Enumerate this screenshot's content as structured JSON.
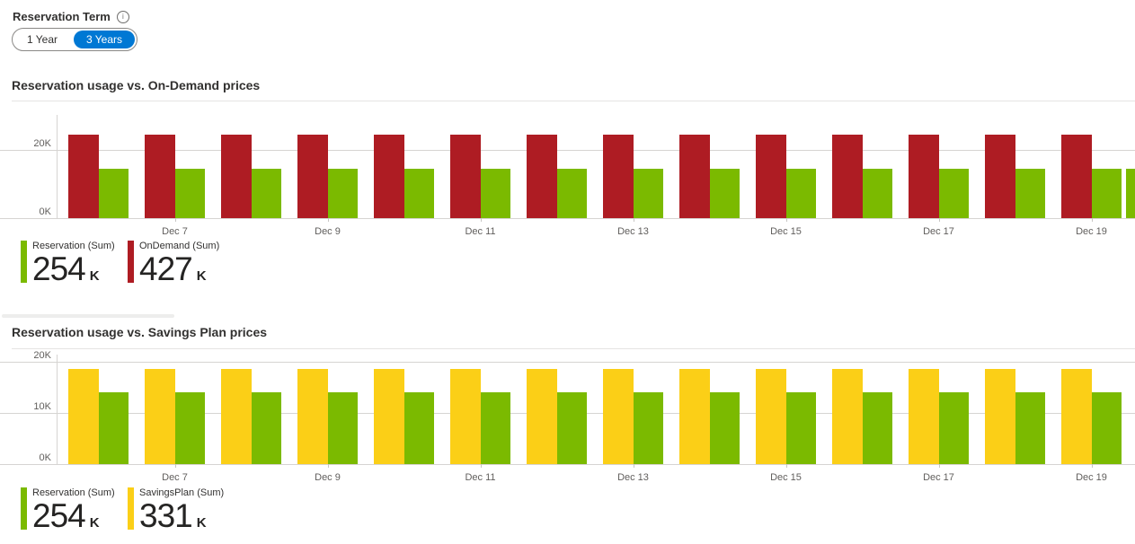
{
  "term_control": {
    "label": "Reservation Term",
    "info_icon": "i",
    "options": [
      {
        "label": "1 Year",
        "selected": false
      },
      {
        "label": "3 Years",
        "selected": true
      }
    ]
  },
  "colors": {
    "accent_blue": "#0078D4",
    "reservation_green": "#7BBA00",
    "ondemand_red": "#AE1C23",
    "savingsplan_yellow": "#FBCF17"
  },
  "chart_data": [
    {
      "type": "bar",
      "title": "Reservation usage vs. On-Demand prices",
      "categories": [
        "Dec 6",
        "Dec 7",
        "Dec 8",
        "Dec 9",
        "Dec 10",
        "Dec 11",
        "Dec 12",
        "Dec 13",
        "Dec 14",
        "Dec 15",
        "Dec 16",
        "Dec 17",
        "Dec 18",
        "Dec 19"
      ],
      "x_tick_labels": [
        "Dec 7",
        "Dec 9",
        "Dec 11",
        "Dec 13",
        "Dec 15",
        "Dec 17",
        "Dec 19"
      ],
      "y_ticks": [
        {
          "label": "0K",
          "value": 0
        },
        {
          "label": "20K",
          "value": 20
        }
      ],
      "ylim": [
        0,
        26
      ],
      "units": "K",
      "grid": true,
      "legend_position": "bottom",
      "series": [
        {
          "name": "OnDemand",
          "color": "#AE1C23",
          "values": [
            24.5,
            24.5,
            24.5,
            24.5,
            24.5,
            24.5,
            24.5,
            24.5,
            24.5,
            24.5,
            24.5,
            24.5,
            24.5,
            24.5
          ]
        },
        {
          "name": "Reservation",
          "color": "#7BBA00",
          "values": [
            14.5,
            14.5,
            14.5,
            14.5,
            14.5,
            14.5,
            14.5,
            14.5,
            14.5,
            14.5,
            14.5,
            14.5,
            14.5,
            14.5
          ]
        }
      ],
      "partial_next_bar": {
        "series": "Reservation",
        "value": 14.5
      },
      "legend_stats": [
        {
          "label": "Reservation (Sum)",
          "value": "254",
          "unit": "K",
          "color": "#7BBA00"
        },
        {
          "label": "OnDemand (Sum)",
          "value": "427",
          "unit": "K",
          "color": "#AE1C23"
        }
      ]
    },
    {
      "type": "bar",
      "title": "Reservation usage vs. Savings Plan prices",
      "categories": [
        "Dec 6",
        "Dec 7",
        "Dec 8",
        "Dec 9",
        "Dec 10",
        "Dec 11",
        "Dec 12",
        "Dec 13",
        "Dec 14",
        "Dec 15",
        "Dec 16",
        "Dec 17",
        "Dec 18",
        "Dec 19"
      ],
      "x_tick_labels": [
        "Dec 7",
        "Dec 9",
        "Dec 11",
        "Dec 13",
        "Dec 15",
        "Dec 17",
        "Dec 19"
      ],
      "y_ticks": [
        {
          "label": "0K",
          "value": 0
        },
        {
          "label": "10K",
          "value": 10
        },
        {
          "label": "20K",
          "value": 20
        }
      ],
      "ylim": [
        0,
        22
      ],
      "units": "K",
      "grid": true,
      "legend_position": "bottom",
      "series": [
        {
          "name": "SavingsPlan",
          "color": "#FBCF17",
          "values": [
            18.6,
            18.6,
            18.6,
            18.6,
            18.6,
            18.6,
            18.6,
            18.6,
            18.6,
            18.6,
            18.6,
            18.6,
            18.6,
            18.6
          ]
        },
        {
          "name": "Reservation",
          "color": "#7BBA00",
          "values": [
            14.0,
            14.0,
            14.0,
            14.0,
            14.0,
            14.0,
            14.0,
            14.0,
            14.0,
            14.0,
            14.0,
            14.0,
            14.0,
            14.0
          ]
        }
      ],
      "legend_stats": [
        {
          "label": "Reservation (Sum)",
          "value": "254",
          "unit": "K",
          "color": "#7BBA00"
        },
        {
          "label": "SavingsPlan (Sum)",
          "value": "331",
          "unit": "K",
          "color": "#FBCF17"
        }
      ]
    }
  ]
}
